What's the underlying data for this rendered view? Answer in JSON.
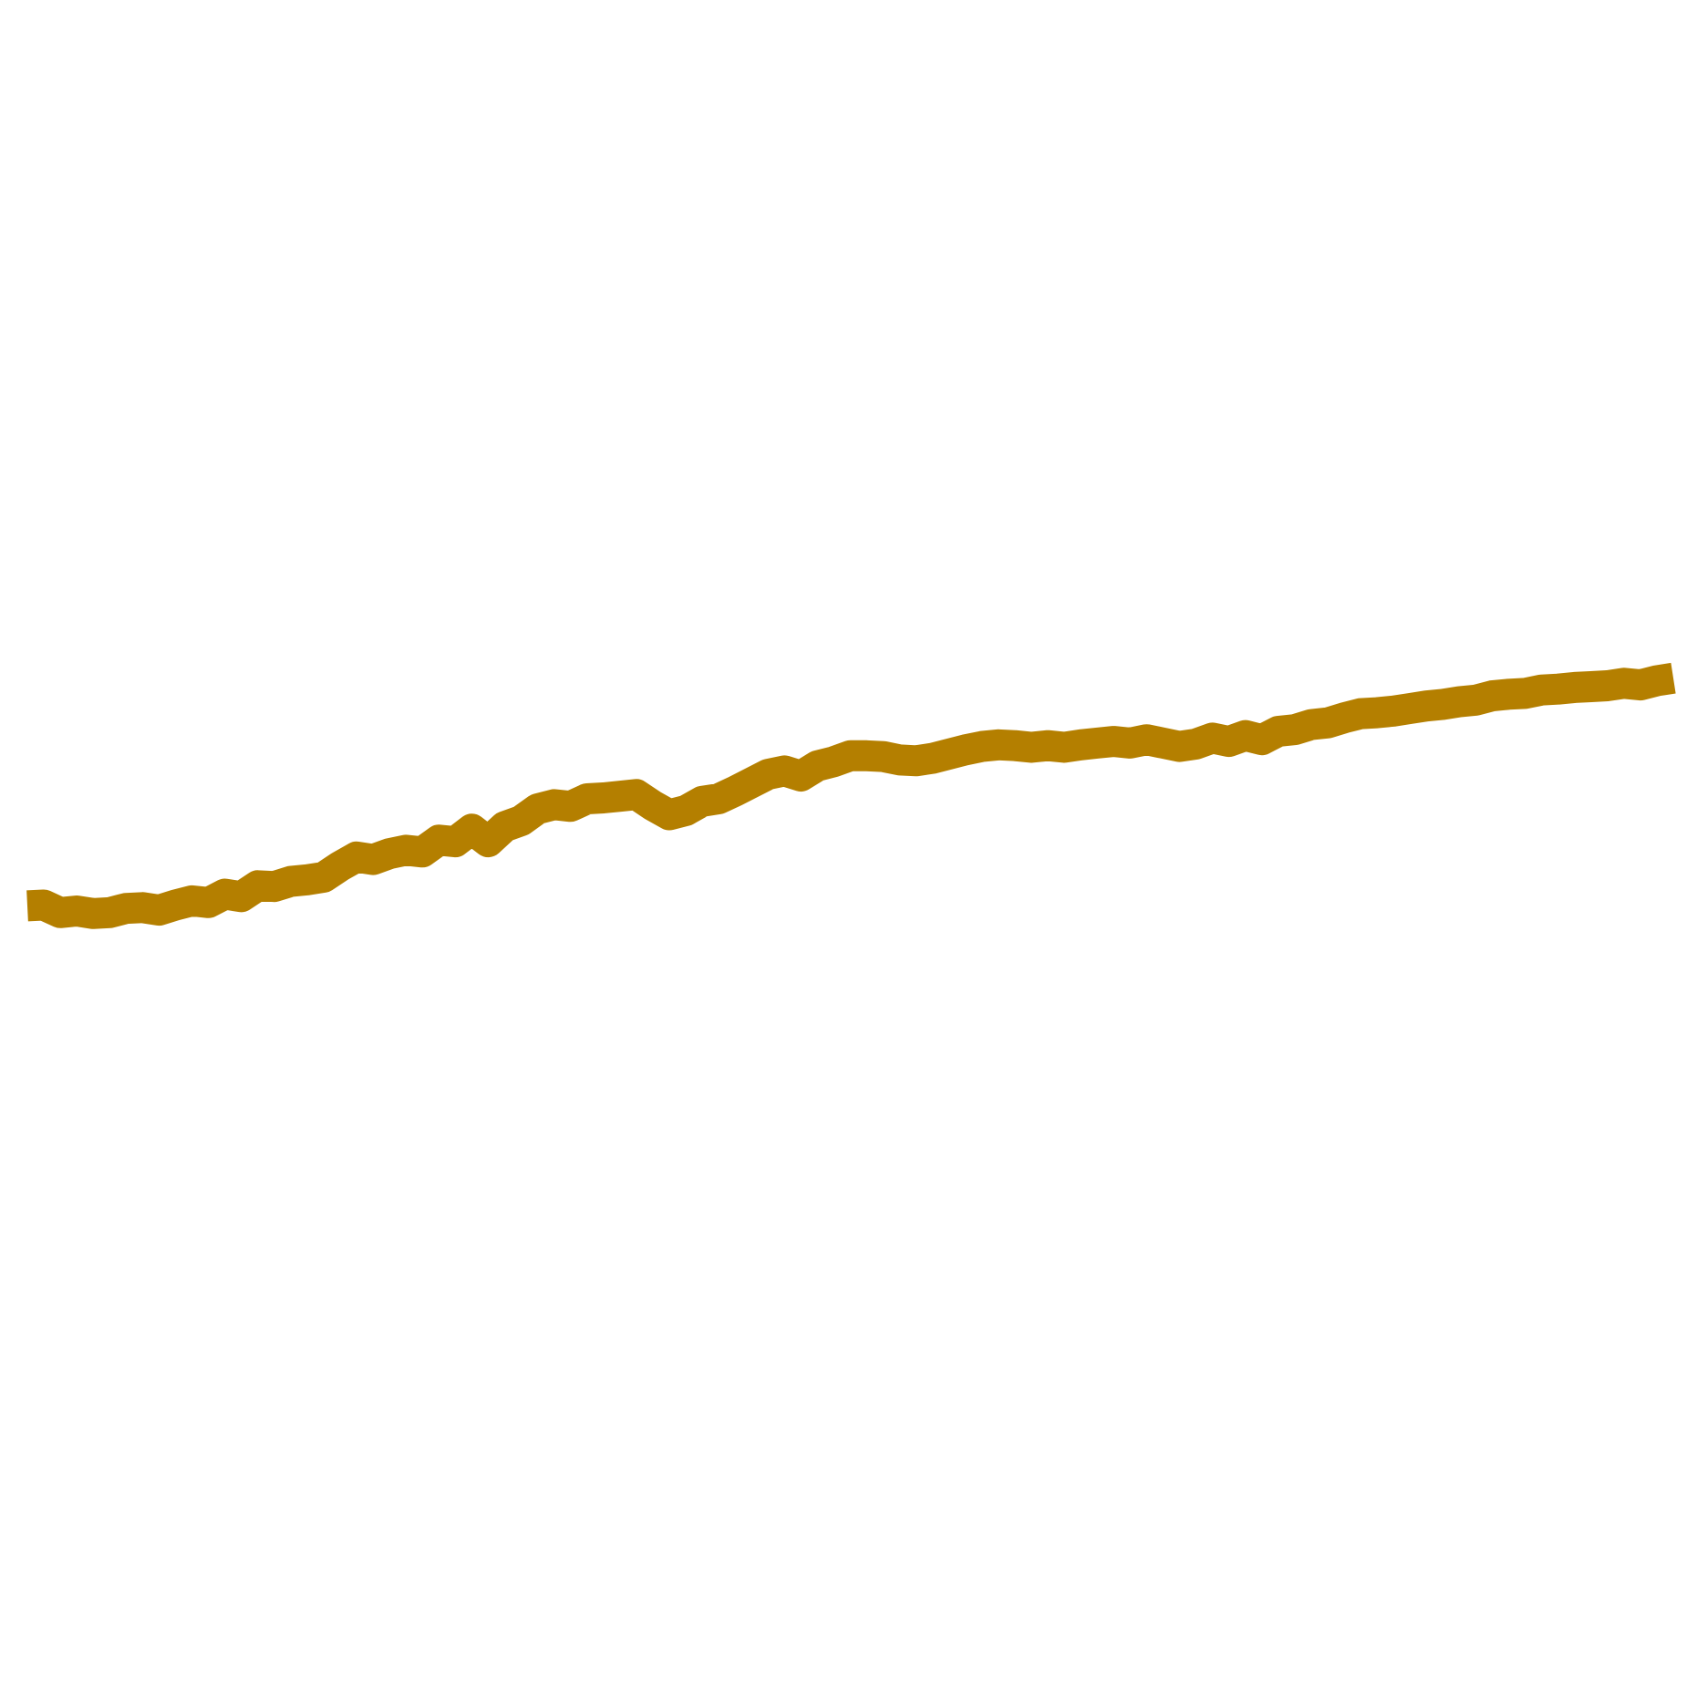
{
  "chart_data": {
    "type": "line",
    "title": "",
    "xlabel": "",
    "ylabel": "",
    "grid": false,
    "legend": "none",
    "x": [
      0,
      0.5,
      1,
      1.5,
      2,
      2.5,
      3,
      3.5,
      4,
      4.5,
      5,
      5.5,
      6,
      6.5,
      7,
      7.5,
      8,
      8.5,
      9,
      9.5,
      10,
      10.5,
      11,
      11.5,
      12,
      12.5,
      13,
      13.5,
      14,
      14.5,
      15,
      15.5,
      16,
      16.5,
      17,
      17.5,
      18,
      18.5,
      19,
      19.5,
      20,
      20.5,
      21,
      21.5,
      22,
      22.5,
      23,
      23.5,
      24,
      24.5,
      25,
      25.5,
      26,
      26.5,
      27,
      27.5,
      28,
      28.5,
      29,
      29.5,
      30,
      30.5,
      31,
      31.5,
      32,
      32.5,
      33,
      33.5,
      34,
      34.5,
      35,
      35.5,
      36,
      36.5,
      37,
      37.5,
      38,
      38.5,
      39,
      39.5,
      40,
      40.5,
      41,
      41.5,
      42,
      42.5,
      43,
      43.5,
      44,
      44.5,
      45,
      45.5,
      46,
      46.5,
      47,
      47.5,
      48,
      48.5,
      49,
      49.5,
      50
    ],
    "xlim": [
      0,
      50
    ],
    "ylim": [
      -1,
      1
    ],
    "series": [
      {
        "values": [
          -0.074,
          -0.073,
          -0.082,
          -0.08,
          -0.083,
          -0.082,
          -0.077,
          -0.076,
          -0.079,
          -0.073,
          -0.068,
          -0.07,
          -0.06,
          -0.063,
          -0.05,
          -0.051,
          -0.045,
          -0.043,
          -0.04,
          -0.027,
          -0.016,
          -0.019,
          -0.012,
          -0.008,
          -0.01,
          0.004,
          0.002,
          0.017,
          0.002,
          0.02,
          0.027,
          0.041,
          0.046,
          0.044,
          0.053,
          0.054,
          0.056,
          0.058,
          0.045,
          0.034,
          0.039,
          0.05,
          0.053,
          0.062,
          0.072,
          0.082,
          0.086,
          0.08,
          0.092,
          0.097,
          0.104,
          0.104,
          0.103,
          0.099,
          0.098,
          0.101,
          0.106,
          0.111,
          0.115,
          0.117,
          0.116,
          0.114,
          0.116,
          0.114,
          0.117,
          0.119,
          0.121,
          0.119,
          0.123,
          0.119,
          0.115,
          0.118,
          0.125,
          0.121,
          0.128,
          0.123,
          0.133,
          0.135,
          0.141,
          0.143,
          0.149,
          0.154,
          0.155,
          0.157,
          0.16,
          0.163,
          0.165,
          0.168,
          0.17,
          0.175,
          0.177,
          0.178,
          0.182,
          0.183,
          0.185,
          0.186,
          0.187,
          0.19,
          0.188,
          0.193,
          0.196
        ]
      }
    ]
  },
  "style": {
    "line_color": "#b47f00",
    "background": "#ffffff"
  }
}
